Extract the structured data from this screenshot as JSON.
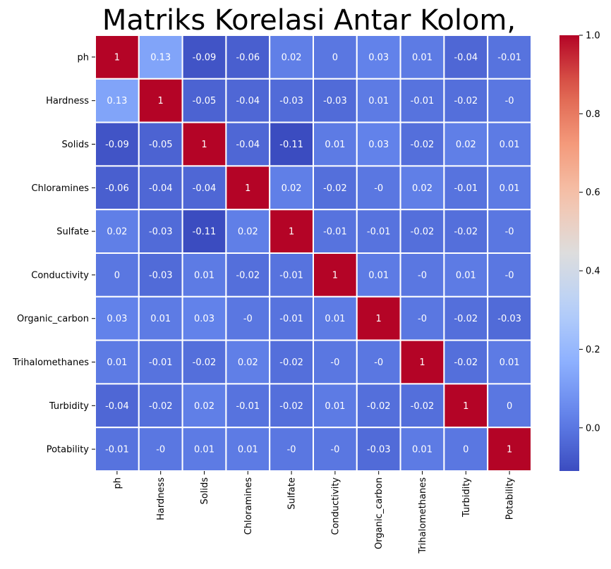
{
  "chart_data": {
    "type": "heatmap",
    "title": "Matriks Korelasi Antar Kolom,",
    "xlabel": "",
    "ylabel": "",
    "labels": [
      "ph",
      "Hardness",
      "Solids",
      "Chloramines",
      "Sulfate",
      "Conductivity",
      "Organic_carbon",
      "Trihalomethanes",
      "Turbidity",
      "Potability"
    ],
    "matrix": [
      [
        1,
        0.13,
        -0.09,
        -0.06,
        0.02,
        0,
        0.03,
        0.01,
        -0.04,
        -0.01
      ],
      [
        0.13,
        1,
        -0.05,
        -0.04,
        -0.03,
        -0.03,
        0.01,
        -0.01,
        -0.02,
        -0.0
      ],
      [
        -0.09,
        -0.05,
        1,
        -0.04,
        -0.11,
        0.01,
        0.03,
        -0.02,
        0.02,
        0.01
      ],
      [
        -0.06,
        -0.04,
        -0.04,
        1,
        0.02,
        -0.02,
        -0.0,
        0.02,
        -0.01,
        0.01
      ],
      [
        0.02,
        -0.03,
        -0.11,
        0.02,
        1,
        -0.01,
        -0.01,
        -0.02,
        -0.02,
        -0.0
      ],
      [
        0,
        -0.03,
        0.01,
        -0.02,
        -0.01,
        1,
        0.01,
        -0.0,
        0.01,
        -0.0
      ],
      [
        0.03,
        0.01,
        0.03,
        -0.0,
        -0.01,
        0.01,
        1,
        -0.0,
        -0.02,
        -0.03
      ],
      [
        0.01,
        -0.01,
        -0.02,
        0.02,
        -0.02,
        -0.0,
        -0.0,
        1,
        -0.02,
        0.01
      ],
      [
        -0.04,
        -0.02,
        0.02,
        -0.01,
        -0.02,
        0.01,
        -0.02,
        -0.02,
        1,
        0
      ],
      [
        -0.01,
        -0.0,
        0.01,
        0.01,
        -0.0,
        -0.0,
        -0.03,
        0.01,
        0,
        1
      ]
    ],
    "cell_text": [
      [
        "1",
        "0.13",
        "-0.09",
        "-0.06",
        "0.02",
        "0",
        "0.03",
        "0.01",
        "-0.04",
        "-0.01"
      ],
      [
        "0.13",
        "1",
        "-0.05",
        "-0.04",
        "-0.03",
        "-0.03",
        "0.01",
        "-0.01",
        "-0.02",
        "-0"
      ],
      [
        "-0.09",
        "-0.05",
        "1",
        "-0.04",
        "-0.11",
        "0.01",
        "0.03",
        "-0.02",
        "0.02",
        "0.01"
      ],
      [
        "-0.06",
        "-0.04",
        "-0.04",
        "1",
        "0.02",
        "-0.02",
        "-0",
        "0.02",
        "-0.01",
        "0.01"
      ],
      [
        "0.02",
        "-0.03",
        "-0.11",
        "0.02",
        "1",
        "-0.01",
        "-0.01",
        "-0.02",
        "-0.02",
        "-0"
      ],
      [
        "0",
        "-0.03",
        "0.01",
        "-0.02",
        "-0.01",
        "1",
        "0.01",
        "-0",
        "0.01",
        "-0"
      ],
      [
        "0.03",
        "0.01",
        "0.03",
        "-0",
        "-0.01",
        "0.01",
        "1",
        "-0",
        "-0.02",
        "-0.03"
      ],
      [
        "0.01",
        "-0.01",
        "-0.02",
        "0.02",
        "-0.02",
        "-0",
        "-0",
        "1",
        "-0.02",
        "0.01"
      ],
      [
        "-0.04",
        "-0.02",
        "0.02",
        "-0.01",
        "-0.02",
        "0.01",
        "-0.02",
        "-0.02",
        "1",
        "0"
      ],
      [
        "-0.01",
        "-0",
        "0.01",
        "0.01",
        "-0",
        "-0",
        "-0.03",
        "0.01",
        "0",
        "1"
      ]
    ],
    "colormap": "coolwarm",
    "vmin": -0.11,
    "vmax": 1.0,
    "colorbar_ticks": [
      0.0,
      0.2,
      0.4,
      0.6,
      0.8,
      1.0
    ],
    "colorbar_tick_labels": [
      "0.0",
      "0.2",
      "0.4",
      "0.6",
      "0.8",
      "1.0"
    ],
    "cell_border_color": "#ffffff",
    "legend": "colorbar-right"
  }
}
